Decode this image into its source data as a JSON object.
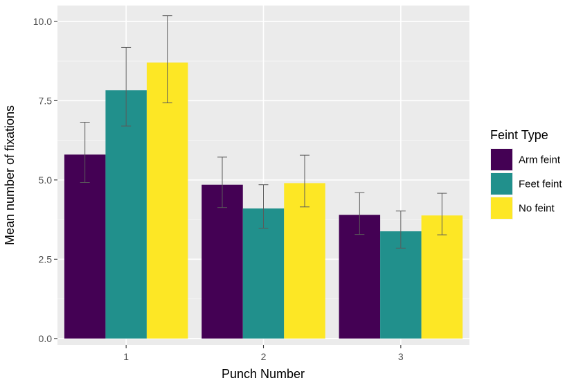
{
  "chart_data": {
    "type": "bar",
    "title": "",
    "xlabel": "Punch Number",
    "ylabel": "Mean number of fixations",
    "categories": [
      "1",
      "2",
      "3"
    ],
    "ylim": [
      -0.2,
      10.5
    ],
    "yticks": [
      0.0,
      2.5,
      5.0,
      7.5,
      10.0
    ],
    "ytick_labels": [
      "0.0",
      "2.5",
      "5.0",
      "7.5",
      "10.0"
    ],
    "grid": true,
    "legend": {
      "title": "Feint Type",
      "placement": "right"
    },
    "error_bars": true,
    "series": [
      {
        "name": "Arm feint",
        "color": "#440154",
        "values": [
          5.8,
          4.85,
          3.9
        ],
        "err_low": [
          4.92,
          4.13,
          3.28
        ],
        "err_high": [
          6.82,
          5.72,
          4.6
        ]
      },
      {
        "name": "Feet feint",
        "color": "#21908C",
        "values": [
          7.83,
          4.1,
          3.38
        ],
        "err_low": [
          6.7,
          3.48,
          2.85
        ],
        "err_high": [
          9.18,
          4.85,
          4.02
        ]
      },
      {
        "name": "No feint",
        "color": "#FDE725",
        "values": [
          8.7,
          4.9,
          3.88
        ],
        "err_low": [
          7.43,
          4.15,
          3.27
        ],
        "err_high": [
          10.18,
          5.78,
          4.58
        ]
      }
    ]
  }
}
